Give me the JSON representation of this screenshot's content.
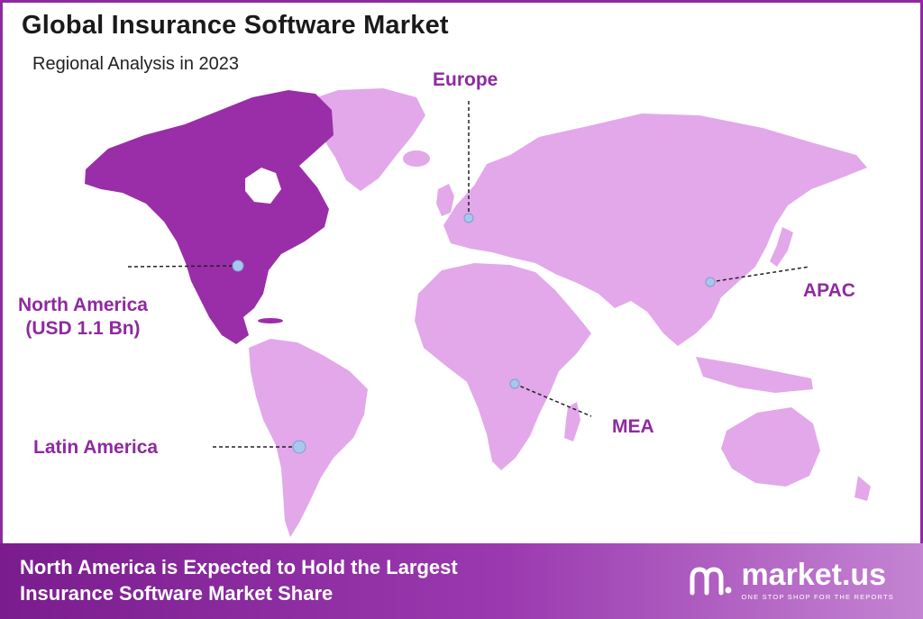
{
  "header": {
    "title": "Global Insurance Software Market",
    "subtitle": "Regional Analysis in 2023"
  },
  "regions": {
    "north_america": {
      "name": "North America",
      "value": "(USD 1.1 Bn)"
    },
    "europe": {
      "name": "Europe"
    },
    "apac": {
      "name": "APAC"
    },
    "mea": {
      "name": "MEA"
    },
    "latin_america": {
      "name": "Latin America"
    }
  },
  "footer": {
    "line1": "North America is Expected to Hold the Largest",
    "line2": "Insurance Software Market Share"
  },
  "brand": {
    "name": "market.us",
    "tagline": "ONE STOP SHOP FOR THE REPORTS"
  },
  "colors": {
    "highlight_region": "#9a2ea8",
    "other_regions": "#e2a8ea",
    "accent": "#8e2aa0",
    "marker": "#a9c7ee"
  }
}
